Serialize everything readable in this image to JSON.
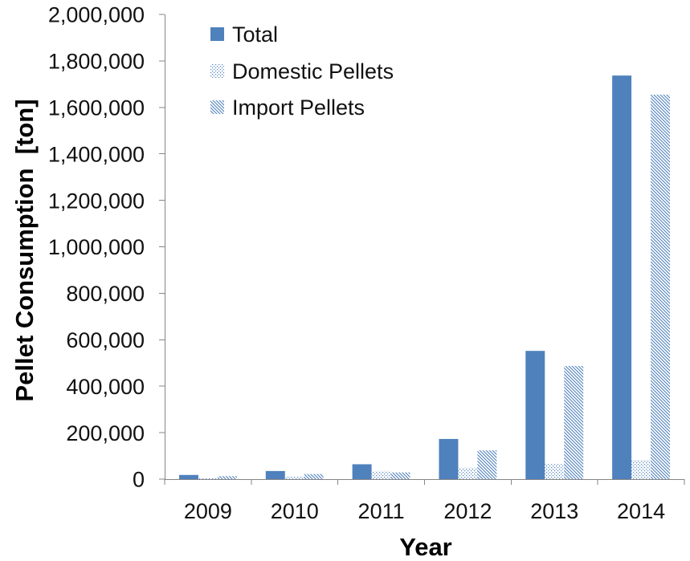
{
  "chart_data": {
    "type": "bar",
    "title": "",
    "xlabel": "Year",
    "ylabel": "Pellet Consumption  [ton]",
    "categories": [
      "2009",
      "2010",
      "2011",
      "2012",
      "2013",
      "2014"
    ],
    "series": [
      {
        "name": "Total",
        "color": "#4F81BD",
        "values": [
          18000,
          35000,
          64000,
          173000,
          552000,
          1737000
        ]
      },
      {
        "name": "Domestic Pellets",
        "color": "#4F81BD",
        "values": [
          5000,
          13000,
          35000,
          49000,
          65000,
          83000
        ]
      },
      {
        "name": "Import Pellets",
        "color": "#4F81BD",
        "values": [
          13000,
          22000,
          29000,
          124000,
          487000,
          1655000
        ]
      }
    ],
    "ylim": [
      0,
      2000000
    ],
    "y_ticks": [
      0,
      200000,
      400000,
      600000,
      800000,
      1000000,
      1200000,
      1400000,
      1600000,
      1800000,
      2000000
    ],
    "y_tick_labels": [
      "0",
      "200,000",
      "400,000",
      "600,000",
      "800,000",
      "1,000,000",
      "1,200,000",
      "1,400,000",
      "1,600,000",
      "1,800,000",
      "2,000,000"
    ],
    "grid": false,
    "legend_position": "top-left"
  }
}
